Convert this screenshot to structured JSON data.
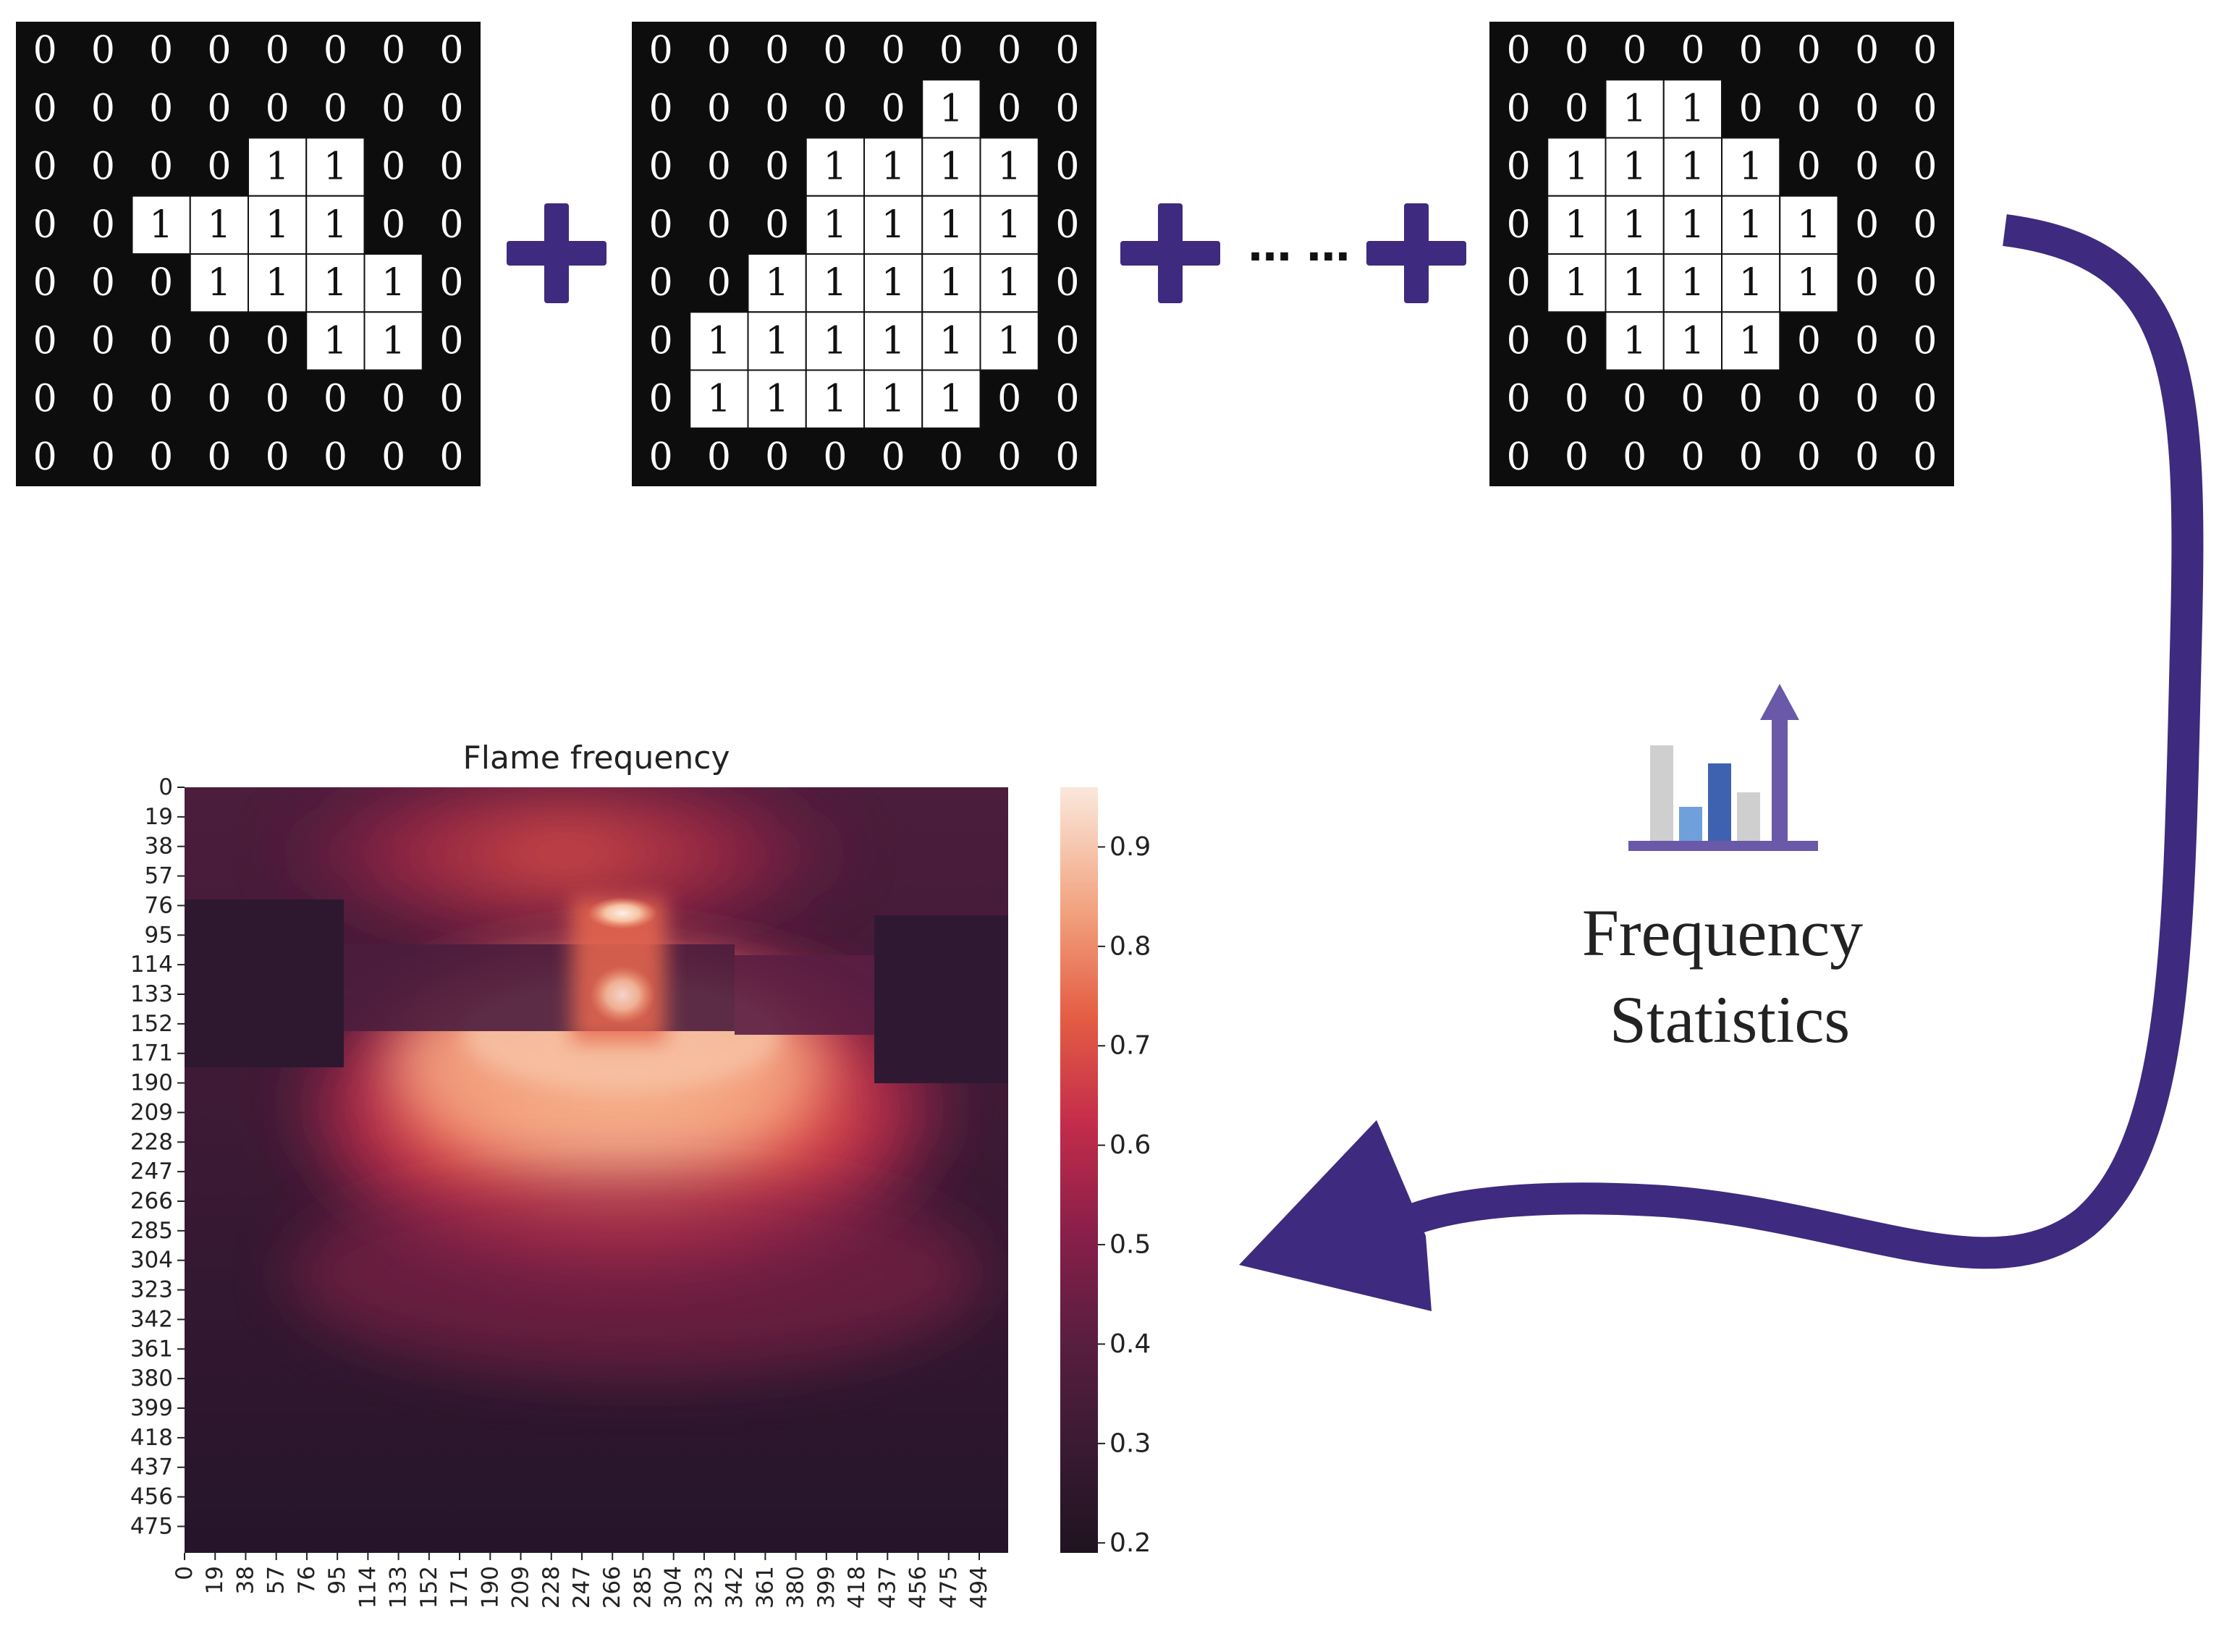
{
  "colors": {
    "grid_background": "#0d0d0d",
    "active_cell": "#ffffff",
    "plus_sign": "#3e2a7e",
    "arrow": "#3e2a7e",
    "icon_bar_gray": "#cfcfcf",
    "icon_bar_lightblue": "#6fa0dc",
    "icon_bar_blue": "#3e62b0",
    "icon_arrow": "#6a58a8"
  },
  "matrices": [
    {
      "cells": [
        [
          0,
          0,
          0,
          0,
          0,
          0,
          0,
          0
        ],
        [
          0,
          0,
          0,
          0,
          0,
          0,
          0,
          0
        ],
        [
          0,
          0,
          0,
          0,
          1,
          1,
          0,
          0
        ],
        [
          0,
          0,
          1,
          1,
          1,
          1,
          0,
          0
        ],
        [
          0,
          0,
          0,
          1,
          1,
          1,
          1,
          0
        ],
        [
          0,
          0,
          0,
          0,
          0,
          1,
          1,
          0
        ],
        [
          0,
          0,
          0,
          0,
          0,
          0,
          0,
          0
        ],
        [
          0,
          0,
          0,
          0,
          0,
          0,
          0,
          0
        ]
      ]
    },
    {
      "cells": [
        [
          0,
          0,
          0,
          0,
          0,
          0,
          0,
          0
        ],
        [
          0,
          0,
          0,
          0,
          0,
          1,
          0,
          0
        ],
        [
          0,
          0,
          0,
          1,
          1,
          1,
          1,
          0
        ],
        [
          0,
          0,
          0,
          1,
          1,
          1,
          1,
          0
        ],
        [
          0,
          0,
          1,
          1,
          1,
          1,
          1,
          0
        ],
        [
          0,
          1,
          1,
          1,
          1,
          1,
          1,
          0
        ],
        [
          0,
          1,
          1,
          1,
          1,
          1,
          0,
          0
        ],
        [
          0,
          0,
          0,
          0,
          0,
          0,
          0,
          0
        ]
      ]
    },
    {
      "cells": [
        [
          0,
          0,
          0,
          0,
          0,
          0,
          0,
          0
        ],
        [
          0,
          0,
          1,
          1,
          0,
          0,
          0,
          0
        ],
        [
          0,
          1,
          1,
          1,
          1,
          0,
          0,
          0
        ],
        [
          0,
          1,
          1,
          1,
          1,
          1,
          0,
          0
        ],
        [
          0,
          1,
          1,
          1,
          1,
          1,
          0,
          0
        ],
        [
          0,
          0,
          1,
          1,
          1,
          0,
          0,
          0
        ],
        [
          0,
          0,
          0,
          0,
          0,
          0,
          0,
          0
        ],
        [
          0,
          0,
          0,
          0,
          0,
          0,
          0,
          0
        ]
      ]
    }
  ],
  "ellipsis": "…  …",
  "stats_label": {
    "line1": "Frequency",
    "line2": "Statistics"
  },
  "chart_data": {
    "type": "heatmap",
    "title": "Flame frequency",
    "y_ticks": [
      "0",
      "19",
      "38",
      "57",
      "76",
      "95",
      "114",
      "133",
      "152",
      "171",
      "190",
      "209",
      "228",
      "247",
      "266",
      "285",
      "304",
      "323",
      "342",
      "361",
      "380",
      "399",
      "418",
      "437",
      "456",
      "475"
    ],
    "x_ticks": [
      "0",
      "19",
      "38",
      "57",
      "76",
      "95",
      "114",
      "133",
      "152",
      "171",
      "190",
      "209",
      "228",
      "247",
      "266",
      "285",
      "304",
      "323",
      "342",
      "361",
      "380",
      "399",
      "418",
      "437",
      "456",
      "475",
      "494"
    ],
    "x_range": [
      0,
      512
    ],
    "y_range": [
      0,
      492
    ],
    "colorbar": {
      "range": [
        0.19,
        0.96
      ],
      "ticks": [
        0.2,
        0.3,
        0.4,
        0.5,
        0.6,
        0.7,
        0.8,
        0.9
      ],
      "tick_labels": [
        "0.2",
        "0.3",
        "0.4",
        "0.5",
        "0.6",
        "0.7",
        "0.8",
        "0.9"
      ],
      "colormap": "rocket"
    }
  }
}
